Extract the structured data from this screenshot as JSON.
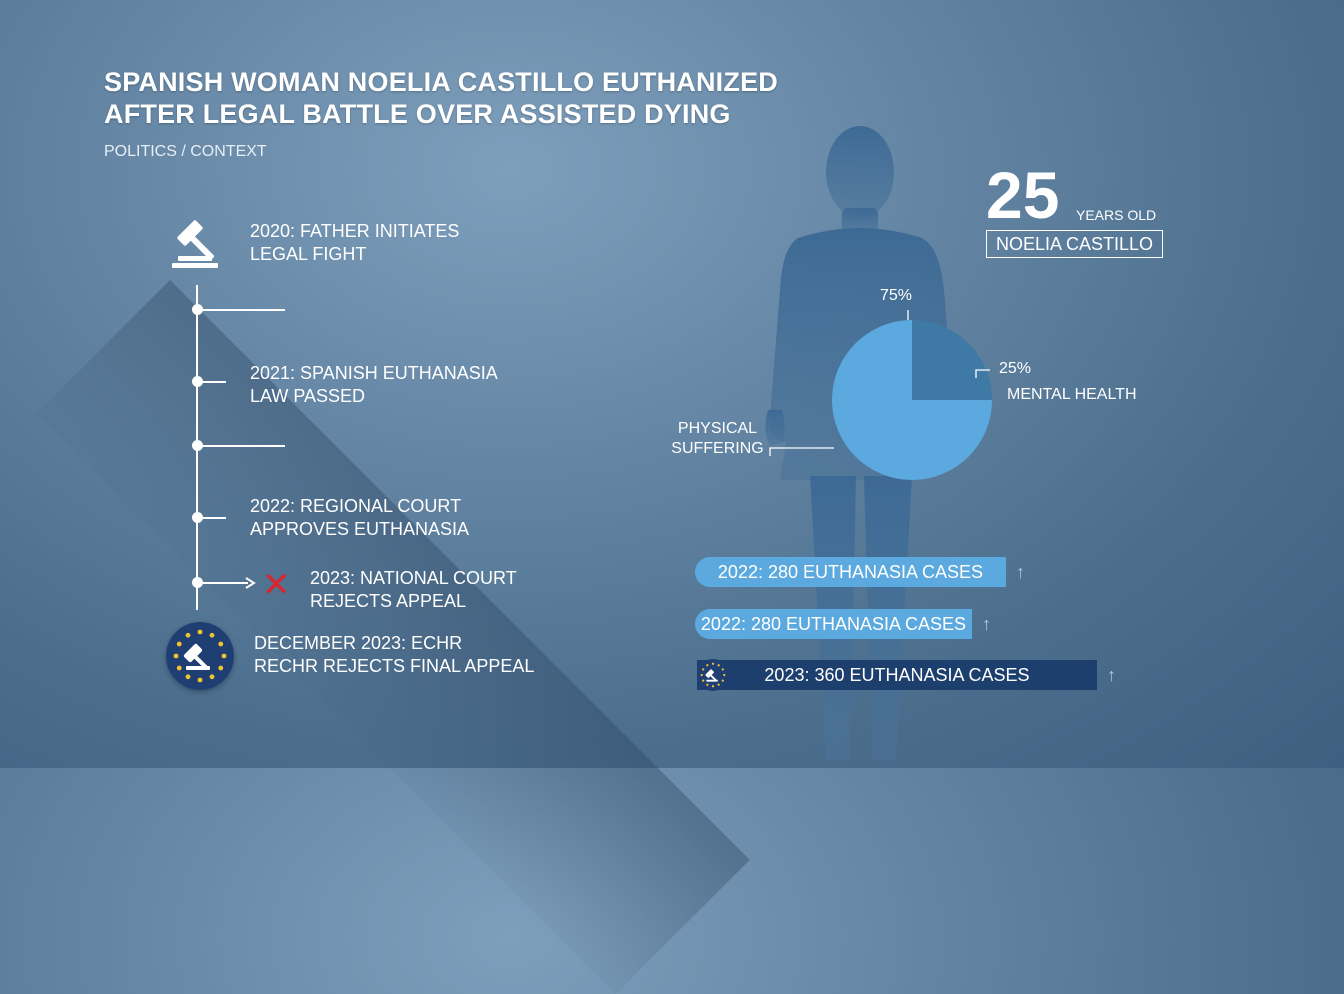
{
  "headline": {
    "line1": "SPANISH WOMAN NOELIA CASTILLO EUTHANIZED",
    "line2": "AFTER LEGAL BATTLE OVER ASSISTED DYING"
  },
  "category": "POLITICS / CONTEXT",
  "timeline": [
    {
      "line1": "2020: FATHER INITIATES",
      "line2": "LEGAL FIGHT"
    },
    {
      "line1": "2021: SPANISH EUTHANASIA",
      "line2": "LAW PASSED"
    },
    {
      "line1": "2022: REGIONAL COURT",
      "line2": "APPROVES EUTHANASIA"
    },
    {
      "line1": "2023:  NATIONAL COURT",
      "line2": "REJECTS APPEAL",
      "marker": "✕"
    },
    {
      "line1": "DECEMBER 2023: ECHR",
      "line2": "RECHR REJECTS FINAL APPEAL"
    }
  ],
  "profile": {
    "age": "25",
    "age_unit": "YEARS OLD",
    "name": "NOELIA CASTILLO"
  },
  "colors": {
    "pie_large": "#5ba9de",
    "pie_small": "#3f79a6",
    "bar_light": "#5ba9de",
    "bar_dark": "#1d3f6e",
    "reject_red": "#d8262b"
  },
  "icons": {
    "gavel": "gavel-icon",
    "reject": "x-icon",
    "echr_seal": "echr-seal-icon",
    "trend": "arrow-up-icon",
    "figure": "person-silhouette-icon"
  },
  "chart_data": [
    {
      "type": "pie",
      "slices": [
        {
          "label": "PHYSICAL SUFFERING",
          "value": 75,
          "value_label": "75%"
        },
        {
          "label": "MENTAL HEALTH",
          "value": 25,
          "value_label": "25%"
        }
      ]
    },
    {
      "type": "bar",
      "bars": [
        {
          "label": "2022: 280 EUTHANASIA CASES",
          "value": 280
        },
        {
          "label": "2022: 280 EUTHANASIA CASES",
          "value": 280
        },
        {
          "label": "2023: 360 EUTHANASIA CASES",
          "value": 360
        }
      ],
      "trend_symbol": "↑"
    }
  ]
}
